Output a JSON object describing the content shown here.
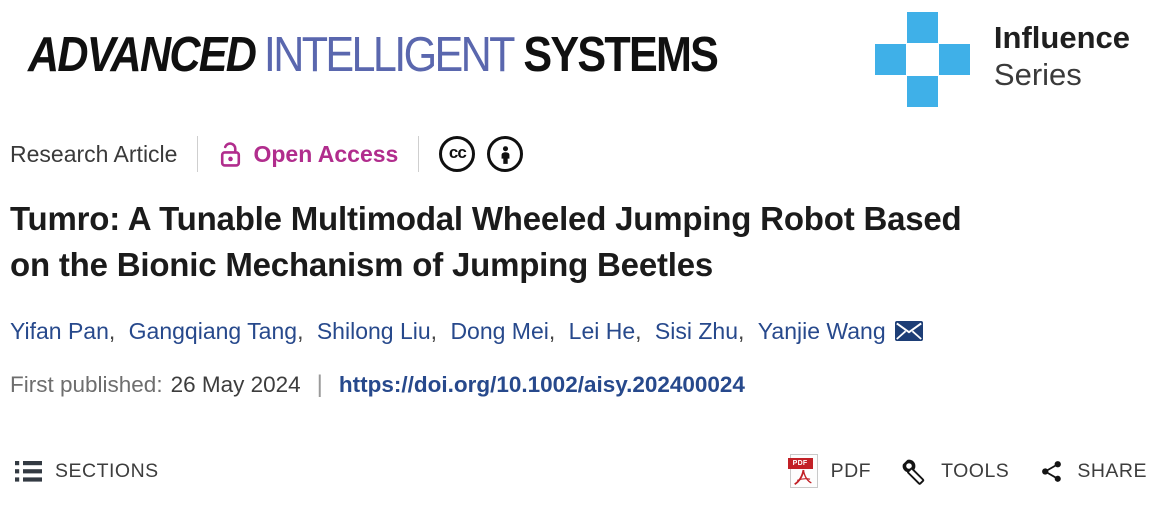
{
  "colors": {
    "accent_magenta": "#b12d8d",
    "link_navy": "#27498c",
    "envelope_navy": "#1d3e76",
    "logo_intelligent_blue": "#5a67ae",
    "series_plus_blue": "#3fb0e8",
    "pdf_red": "#c22026",
    "text_dark": "#1b1b1b",
    "text_gray": "#6e6e6e"
  },
  "masthead": {
    "journal": {
      "word1": "ADVANCED",
      "word2": "INTELLIGENT",
      "word3": "SYSTEMS"
    },
    "series": {
      "name": "Influence",
      "line2": "Series"
    }
  },
  "meta": {
    "article_type": "Research Article",
    "access_label": "Open Access",
    "cc_label": "cc"
  },
  "article": {
    "title": "Tumro: A Tunable Multimodal Wheeled Jumping Robot Based on the Bionic Mechanism of Jumping Beetles",
    "title_line1": "Tumro: A Tunable Multimodal Wheeled Jumping Robot Based",
    "title_line2": "on the Bionic Mechanism of Jumping Beetles"
  },
  "authors": {
    "names": [
      "Yifan Pan",
      "Gangqiang Tang",
      "Shilong Liu",
      "Dong Mei",
      "Lei He",
      "Sisi Zhu",
      "Yanjie Wang"
    ]
  },
  "publication": {
    "label": "First published:",
    "date": "26 May 2024",
    "doi": "https://doi.org/10.1002/aisy.202400024"
  },
  "toolbar": {
    "sections": "SECTIONS",
    "pdf": "PDF",
    "pdf_icon_label": "PDF",
    "tools": "TOOLS",
    "share": "SHARE"
  }
}
